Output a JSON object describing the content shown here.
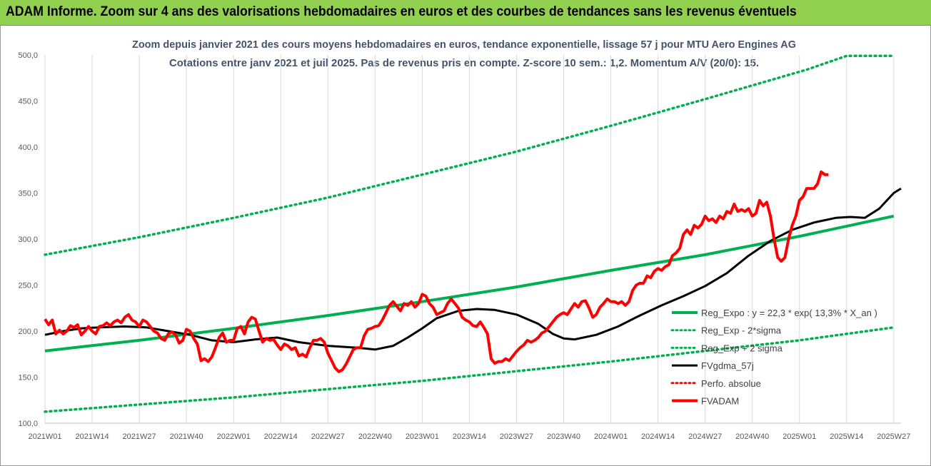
{
  "banner": {
    "title": "ADAM Informe. Zoom sur 4 ans des valorisations hebdomadaires en euros et des courbes de tendances sans les revenus éventuels"
  },
  "chart_data": {
    "type": "line",
    "title": "Zoom depuis janvier 2021 des cours moyens hebdomadaires en euros, tendance exponentielle, lissage 57 j pour MTU Aero Engines AG",
    "subtitle": "Cotations entre janv 2021 et juil 2025. Pas de revenus pris en compte. Z-score 10 sem.: 1,2. Momentum A/V (20/0): 15.",
    "xlabel": "",
    "ylabel": "",
    "ylim": [
      100,
      500
    ],
    "yticks": [
      "100,0",
      "150,0",
      "200,0",
      "250,0",
      "300,0",
      "350,0",
      "400,0",
      "450,0",
      "500,0"
    ],
    "xlim": [
      0,
      236
    ],
    "xticks": [
      {
        "label": "2021W01",
        "x": 0
      },
      {
        "label": "2021W14",
        "x": 13
      },
      {
        "label": "2021W27",
        "x": 26
      },
      {
        "label": "2021W40",
        "x": 39
      },
      {
        "label": "2022W01",
        "x": 52
      },
      {
        "label": "2022W14",
        "x": 65
      },
      {
        "label": "2022W27",
        "x": 78
      },
      {
        "label": "2022W40",
        "x": 91
      },
      {
        "label": "2023W01",
        "x": 104
      },
      {
        "label": "2023W14",
        "x": 117
      },
      {
        "label": "2023W27",
        "x": 130
      },
      {
        "label": "2023W40",
        "x": 143
      },
      {
        "label": "2024W01",
        "x": 156
      },
      {
        "label": "2024W14",
        "x": 169
      },
      {
        "label": "2024W27",
        "x": 182
      },
      {
        "label": "2024W40",
        "x": 195
      },
      {
        "label": "2025W01",
        "x": 208
      },
      {
        "label": "2025W14",
        "x": 221
      },
      {
        "label": "2025W27",
        "x": 234
      }
    ],
    "grid": "vertical",
    "legend_position": "right",
    "series": [
      {
        "name": "Reg_Expo : y = 22,3 * exp( 13,3% * X_an )",
        "color": "#00b050",
        "style": "solid",
        "points": [
          [
            0,
            178.5
          ],
          [
            26,
            190
          ],
          [
            52,
            203
          ],
          [
            78,
            217
          ],
          [
            104,
            232
          ],
          [
            130,
            248
          ],
          [
            156,
            266
          ],
          [
            182,
            283
          ],
          [
            208,
            303
          ],
          [
            234,
            325
          ]
        ]
      },
      {
        "name": "Reg_Exp - 2*sigma",
        "color": "#00b050",
        "style": "dotted",
        "points": [
          [
            0,
            112.5
          ],
          [
            52,
            128
          ],
          [
            104,
            146
          ],
          [
            156,
            167
          ],
          [
            208,
            190
          ],
          [
            234,
            204
          ]
        ]
      },
      {
        "name": "Reg_Exp + 2 sigma",
        "color": "#00b050",
        "style": "dotted",
        "points": [
          [
            0,
            283
          ],
          [
            26,
            302
          ],
          [
            52,
            323
          ],
          [
            78,
            345
          ],
          [
            104,
            370
          ],
          [
            130,
            395
          ],
          [
            156,
            423
          ],
          [
            182,
            452
          ],
          [
            210,
            484
          ],
          [
            221,
            499
          ],
          [
            234,
            499
          ]
        ]
      },
      {
        "name": "FVgdma_57j",
        "color": "#000000",
        "style": "solid",
        "points": [
          [
            0,
            196
          ],
          [
            5,
            200
          ],
          [
            10,
            203
          ],
          [
            15,
            204
          ],
          [
            22,
            205
          ],
          [
            28,
            204
          ],
          [
            34,
            200
          ],
          [
            40,
            196
          ],
          [
            46,
            190
          ],
          [
            52,
            188
          ],
          [
            58,
            191
          ],
          [
            64,
            193
          ],
          [
            70,
            188
          ],
          [
            78,
            184
          ],
          [
            86,
            182
          ],
          [
            91,
            180
          ],
          [
            96,
            184
          ],
          [
            100,
            193
          ],
          [
            104,
            203
          ],
          [
            108,
            214
          ],
          [
            114,
            222
          ],
          [
            119,
            224
          ],
          [
            124,
            223
          ],
          [
            130,
            218
          ],
          [
            136,
            208
          ],
          [
            140,
            197
          ],
          [
            143,
            192
          ],
          [
            146,
            191
          ],
          [
            152,
            196
          ],
          [
            158,
            205
          ],
          [
            164,
            217
          ],
          [
            170,
            228
          ],
          [
            176,
            238
          ],
          [
            182,
            249
          ],
          [
            188,
            263
          ],
          [
            194,
            282
          ],
          [
            200,
            298
          ],
          [
            206,
            310
          ],
          [
            212,
            318
          ],
          [
            218,
            323
          ],
          [
            222,
            324
          ],
          [
            226,
            323
          ],
          [
            230,
            333
          ],
          [
            234,
            350
          ],
          [
            236,
            355
          ]
        ]
      },
      {
        "name": "Perfo. absolue",
        "color": "#ff0000",
        "style": "dotted",
        "points": []
      },
      {
        "name": "FVADAM",
        "color": "#ff0000",
        "style": "solid",
        "points": [
          [
            0,
            213
          ],
          [
            1,
            207
          ],
          [
            2,
            212
          ],
          [
            3,
            197
          ],
          [
            4,
            201
          ],
          [
            5,
            197
          ],
          [
            6,
            200
          ],
          [
            7,
            206
          ],
          [
            8,
            204
          ],
          [
            9,
            207
          ],
          [
            10,
            196
          ],
          [
            11,
            200
          ],
          [
            12,
            205
          ],
          [
            13,
            200
          ],
          [
            14,
            197
          ],
          [
            15,
            205
          ],
          [
            16,
            206
          ],
          [
            17,
            209
          ],
          [
            18,
            206
          ],
          [
            19,
            210
          ],
          [
            20,
            212
          ],
          [
            21,
            209
          ],
          [
            22,
            215
          ],
          [
            23,
            218
          ],
          [
            24,
            212
          ],
          [
            25,
            210
          ],
          [
            26,
            205
          ],
          [
            27,
            212
          ],
          [
            28,
            210
          ],
          [
            29,
            205
          ],
          [
            30,
            200
          ],
          [
            31,
            198
          ],
          [
            32,
            192
          ],
          [
            33,
            190
          ],
          [
            34,
            197
          ],
          [
            35,
            199
          ],
          [
            36,
            196
          ],
          [
            37,
            187
          ],
          [
            38,
            190
          ],
          [
            39,
            202
          ],
          [
            40,
            200
          ],
          [
            41,
            192
          ],
          [
            42,
            186
          ],
          [
            43,
            168
          ],
          [
            44,
            170
          ],
          [
            45,
            167
          ],
          [
            46,
            172
          ],
          [
            47,
            182
          ],
          [
            48,
            193
          ],
          [
            49,
            198
          ],
          [
            50,
            188
          ],
          [
            51,
            190
          ],
          [
            52,
            190
          ],
          [
            53,
            203
          ],
          [
            54,
            205
          ],
          [
            55,
            197
          ],
          [
            56,
            210
          ],
          [
            57,
            215
          ],
          [
            58,
            213
          ],
          [
            59,
            200
          ],
          [
            60,
            188
          ],
          [
            61,
            192
          ],
          [
            62,
            190
          ],
          [
            63,
            191
          ],
          [
            64,
            185
          ],
          [
            65,
            180
          ],
          [
            66,
            186
          ],
          [
            67,
            184
          ],
          [
            68,
            180
          ],
          [
            69,
            182
          ],
          [
            70,
            173
          ],
          [
            71,
            175
          ],
          [
            72,
            172
          ],
          [
            73,
            182
          ],
          [
            74,
            190
          ],
          [
            75,
            190
          ],
          [
            76,
            192
          ],
          [
            77,
            188
          ],
          [
            78,
            176
          ],
          [
            79,
            168
          ],
          [
            80,
            160
          ],
          [
            81,
            156
          ],
          [
            82,
            158
          ],
          [
            83,
            164
          ],
          [
            84,
            172
          ],
          [
            85,
            180
          ],
          [
            86,
            182
          ],
          [
            87,
            182
          ],
          [
            88,
            195
          ],
          [
            89,
            202
          ],
          [
            90,
            203
          ],
          [
            91,
            205
          ],
          [
            92,
            206
          ],
          [
            93,
            212
          ],
          [
            94,
            220
          ],
          [
            95,
            228
          ],
          [
            96,
            232
          ],
          [
            97,
            227
          ],
          [
            98,
            222
          ],
          [
            99,
            230
          ],
          [
            100,
            228
          ],
          [
            101,
            232
          ],
          [
            102,
            226
          ],
          [
            103,
            230
          ],
          [
            104,
            240
          ],
          [
            105,
            238
          ],
          [
            106,
            230
          ],
          [
            107,
            226
          ],
          [
            108,
            218
          ],
          [
            109,
            220
          ],
          [
            110,
            222
          ],
          [
            111,
            230
          ],
          [
            112,
            235
          ],
          [
            113,
            230
          ],
          [
            114,
            225
          ],
          [
            115,
            215
          ],
          [
            116,
            212
          ],
          [
            117,
            210
          ],
          [
            118,
            206
          ],
          [
            119,
            205
          ],
          [
            120,
            210
          ],
          [
            121,
            204
          ],
          [
            122,
            197
          ],
          [
            123,
            170
          ],
          [
            124,
            165
          ],
          [
            125,
            167
          ],
          [
            126,
            167
          ],
          [
            127,
            170
          ],
          [
            128,
            168
          ],
          [
            129,
            173
          ],
          [
            130,
            178
          ],
          [
            131,
            182
          ],
          [
            132,
            185
          ],
          [
            133,
            190
          ],
          [
            134,
            188
          ],
          [
            135,
            190
          ],
          [
            136,
            193
          ],
          [
            137,
            198
          ],
          [
            138,
            200
          ],
          [
            139,
            205
          ],
          [
            140,
            210
          ],
          [
            141,
            215
          ],
          [
            142,
            218
          ],
          [
            143,
            220
          ],
          [
            144,
            218
          ],
          [
            145,
            224
          ],
          [
            146,
            230
          ],
          [
            147,
            226
          ],
          [
            148,
            232
          ],
          [
            149,
            233
          ],
          [
            150,
            225
          ],
          [
            151,
            215
          ],
          [
            152,
            218
          ],
          [
            153,
            226
          ],
          [
            154,
            230
          ],
          [
            155,
            235
          ],
          [
            156,
            232
          ],
          [
            157,
            232
          ],
          [
            158,
            230
          ],
          [
            159,
            232
          ],
          [
            160,
            228
          ],
          [
            161,
            232
          ],
          [
            162,
            244
          ],
          [
            163,
            250
          ],
          [
            164,
            252
          ],
          [
            165,
            252
          ],
          [
            166,
            260
          ],
          [
            167,
            258
          ],
          [
            168,
            265
          ],
          [
            169,
            268
          ],
          [
            170,
            266
          ],
          [
            171,
            270
          ],
          [
            172,
            272
          ],
          [
            173,
            282
          ],
          [
            174,
            285
          ],
          [
            175,
            290
          ],
          [
            176,
            305
          ],
          [
            177,
            310
          ],
          [
            178,
            305
          ],
          [
            179,
            315
          ],
          [
            180,
            312
          ],
          [
            181,
            316
          ],
          [
            182,
            325
          ],
          [
            183,
            320
          ],
          [
            184,
            322
          ],
          [
            185,
            318
          ],
          [
            186,
            325
          ],
          [
            187,
            322
          ],
          [
            188,
            330
          ],
          [
            189,
            328
          ],
          [
            190,
            338
          ],
          [
            191,
            330
          ],
          [
            192,
            332
          ],
          [
            193,
            330
          ],
          [
            194,
            333
          ],
          [
            195,
            325
          ],
          [
            196,
            328
          ],
          [
            197,
            342
          ],
          [
            198,
            336
          ],
          [
            199,
            340
          ],
          [
            200,
            325
          ],
          [
            201,
            300
          ],
          [
            202,
            280
          ],
          [
            203,
            276
          ],
          [
            204,
            280
          ],
          [
            205,
            300
          ],
          [
            206,
            315
          ],
          [
            207,
            325
          ],
          [
            208,
            342
          ],
          [
            209,
            346
          ],
          [
            210,
            355
          ],
          [
            211,
            355
          ],
          [
            212,
            355
          ],
          [
            213,
            360
          ],
          [
            214,
            373
          ],
          [
            215,
            370
          ],
          [
            216,
            370
          ]
        ]
      }
    ]
  }
}
